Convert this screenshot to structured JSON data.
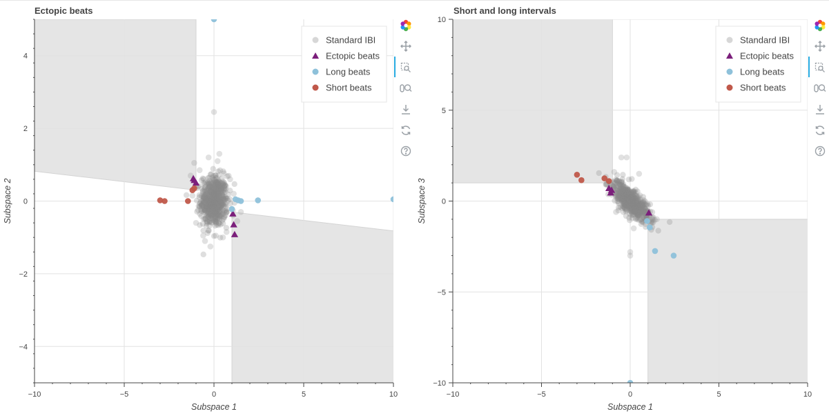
{
  "chart_data": [
    {
      "type": "scatter",
      "title": "Ectopic beats",
      "xlabel": "Subspace 1",
      "ylabel": "Subspace 2",
      "xlim": [
        -10,
        10
      ],
      "ylim": [
        -5,
        5
      ],
      "x_ticks": [
        -10,
        -5,
        0,
        5,
        10
      ],
      "y_ticks": [
        -4,
        -2,
        0,
        2,
        4
      ],
      "x_tick_labels": [
        "−10",
        "−5",
        "0",
        "5",
        "10"
      ],
      "y_tick_labels": [
        "−4",
        "−2",
        "0",
        "2",
        "4"
      ],
      "grid": true,
      "legend_position": "top-right",
      "legend": [
        {
          "label": "Standard IBI",
          "color": "#bdbdbd",
          "marker": "circle"
        },
        {
          "label": "Ectopic beats",
          "color": "#7b1f7b",
          "marker": "triangle"
        },
        {
          "label": "Long beats",
          "color": "#8ec1da",
          "marker": "circle"
        },
        {
          "label": "Short beats",
          "color": "#c0584a",
          "marker": "circle"
        }
      ],
      "regions": [
        {
          "points": [
            [
              -10,
              5
            ],
            [
              -1,
              5
            ],
            [
              -1,
              0.3
            ],
            [
              -10,
              0.82
            ]
          ]
        },
        {
          "points": [
            [
              1,
              -0.3
            ],
            [
              10,
              -0.82
            ],
            [
              10,
              -5
            ],
            [
              1,
              -5
            ]
          ]
        }
      ],
      "standard_cloud": {
        "center": [
          0,
          0
        ],
        "sd": [
          0.38,
          0.35
        ],
        "n": 600
      },
      "series": [
        {
          "name": "Standard IBI",
          "color": "#9a9a9a",
          "marker": "circle",
          "points": [
            [
              0,
              2.45
            ],
            [
              -1.1,
              1.05
            ],
            [
              -1.3,
              0.7
            ],
            [
              -0.5,
              -1.1
            ],
            [
              -0.2,
              -1.25
            ],
            [
              0.7,
              -0.85
            ],
            [
              1.3,
              -0.55
            ],
            [
              1.5,
              -0.3
            ],
            [
              0.3,
              1.3
            ],
            [
              -0.8,
              0.85
            ],
            [
              0.2,
              1.1
            ],
            [
              -1.0,
              -0.6
            ],
            [
              0.9,
              0.6
            ],
            [
              -0.6,
              -0.95
            ],
            [
              0.5,
              -1.0
            ],
            [
              -1.2,
              0.15
            ],
            [
              1.1,
              0.2
            ],
            [
              -0.3,
              1.2
            ],
            [
              0.1,
              -0.95
            ],
            [
              -0.9,
              0.4
            ]
          ]
        },
        {
          "name": "Ectopic beats",
          "color": "#7b1f7b",
          "marker": "triangle",
          "points": [
            [
              -1.15,
              0.62
            ],
            [
              -1.0,
              0.5
            ],
            [
              -1.1,
              0.57
            ],
            [
              1.05,
              -0.35
            ],
            [
              1.1,
              -0.65
            ],
            [
              1.15,
              -0.92
            ]
          ]
        },
        {
          "name": "Long beats",
          "color": "#8ec1da",
          "marker": "circle",
          "points": [
            [
              0,
              5.0
            ],
            [
              2.45,
              0.02
            ],
            [
              10,
              0.05
            ],
            [
              1.35,
              0.02
            ],
            [
              1.0,
              -0.22
            ],
            [
              1.5,
              0.0
            ],
            [
              1.2,
              0.05
            ]
          ]
        },
        {
          "name": "Short beats",
          "color": "#c0584a",
          "marker": "circle",
          "points": [
            [
              -3.0,
              0.02
            ],
            [
              -2.75,
              0.0
            ],
            [
              -1.45,
              0.0
            ],
            [
              -1.2,
              0.3
            ],
            [
              -1.1,
              0.35
            ]
          ]
        }
      ]
    },
    {
      "type": "scatter",
      "title": "Short and long intervals",
      "xlabel": "Subspace 1",
      "ylabel": "Subspace 3",
      "xlim": [
        -10,
        10
      ],
      "ylim": [
        -10,
        10
      ],
      "x_ticks": [
        -10,
        -5,
        0,
        5,
        10
      ],
      "y_ticks": [
        -10,
        -5,
        0,
        5,
        10
      ],
      "x_tick_labels": [
        "−10",
        "−5",
        "0",
        "5",
        "10"
      ],
      "y_tick_labels": [
        "−10",
        "−5",
        "0",
        "5",
        "10"
      ],
      "grid": true,
      "legend_position": "top-right",
      "legend": [
        {
          "label": "Standard IBI",
          "color": "#bdbdbd",
          "marker": "circle"
        },
        {
          "label": "Ectopic beats",
          "color": "#7b1f7b",
          "marker": "triangle"
        },
        {
          "label": "Long beats",
          "color": "#8ec1da",
          "marker": "circle"
        },
        {
          "label": "Short beats",
          "color": "#c0584a",
          "marker": "circle"
        }
      ],
      "regions": [
        {
          "points": [
            [
              -10,
              10
            ],
            [
              -1,
              10
            ],
            [
              -1,
              1
            ],
            [
              -10,
              1
            ]
          ]
        },
        {
          "points": [
            [
              1,
              -1
            ],
            [
              10,
              -1
            ],
            [
              10,
              -10
            ],
            [
              1,
              -10
            ]
          ]
        }
      ],
      "standard_cloud": {
        "center": [
          0,
          0
        ],
        "sd": [
          0.55,
          0.55
        ],
        "n": 600,
        "corr": -0.75
      },
      "series": [
        {
          "name": "Standard IBI",
          "color": "#9a9a9a",
          "marker": "circle",
          "points": [
            [
              -0.5,
              2.4
            ],
            [
              -0.2,
              2.4
            ],
            [
              0,
              -2.8
            ],
            [
              0,
              -3.0
            ],
            [
              -0.9,
              1.6
            ],
            [
              -1.3,
              0.9
            ],
            [
              1.3,
              -0.9
            ],
            [
              1.5,
              -1.0
            ],
            [
              -0.8,
              -0.6
            ],
            [
              0.5,
              1.5
            ],
            [
              0.2,
              -1.5
            ]
          ]
        },
        {
          "name": "Ectopic beats",
          "color": "#7b1f7b",
          "marker": "triangle",
          "points": [
            [
              -1.2,
              0.7
            ],
            [
              -1.05,
              0.6
            ],
            [
              -1.1,
              0.45
            ],
            [
              1.05,
              -0.65
            ]
          ]
        },
        {
          "name": "Long beats",
          "color": "#8ec1da",
          "marker": "circle",
          "points": [
            [
              0,
              -10.0
            ],
            [
              1.4,
              -2.75
            ],
            [
              2.45,
              -3.0
            ],
            [
              1.1,
              -1.45
            ],
            [
              0.95,
              -1.1
            ]
          ]
        },
        {
          "name": "Short beats",
          "color": "#c0584a",
          "marker": "circle",
          "points": [
            [
              -3.0,
              1.45
            ],
            [
              -2.75,
              1.15
            ],
            [
              -1.45,
              1.25
            ],
            [
              -1.2,
              1.1
            ]
          ]
        }
      ]
    }
  ]
}
